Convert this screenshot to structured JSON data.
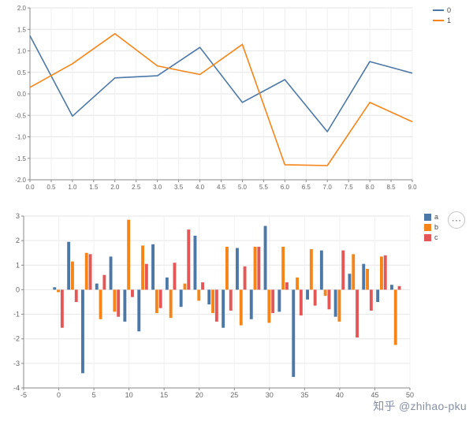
{
  "watermark": {
    "text": "知乎 @zhihao-pku"
  },
  "actions_button": {
    "icon": "⋯"
  },
  "colors": {
    "blue": "#4c78a8",
    "orange": "#f58518",
    "red": "#e45756",
    "grid": "#e6e6e6",
    "axis": "#8a8a8a",
    "tick_text": "#666666"
  },
  "chart_data": [
    {
      "type": "line",
      "title": "",
      "xlabel": "",
      "ylabel": "",
      "grid": true,
      "legend_position": "top-right",
      "xlim": [
        0,
        9
      ],
      "ylim": [
        -2,
        2
      ],
      "x": [
        0,
        1,
        2,
        3,
        4,
        5,
        6,
        7,
        8,
        9
      ],
      "series": [
        {
          "name": "0",
          "color": "#4c78a8",
          "values": [
            1.35,
            -0.52,
            0.37,
            0.42,
            1.08,
            -0.2,
            0.33,
            -0.88,
            0.75,
            0.48
          ]
        },
        {
          "name": "1",
          "color": "#f58518",
          "values": [
            0.15,
            0.7,
            1.4,
            0.65,
            0.45,
            1.15,
            -1.65,
            -1.67,
            -0.2,
            -0.65
          ]
        }
      ],
      "x_tick_values": [
        0,
        0.5,
        1,
        1.5,
        2,
        2.5,
        3,
        3.5,
        4,
        4.5,
        5,
        5.5,
        6,
        6.5,
        7,
        7.5,
        8,
        8.5,
        9
      ],
      "x_tick_labels": [
        "0.0",
        "0.5",
        "1.0",
        "1.5",
        "2.0",
        "2.5",
        "3.0",
        "3.5",
        "4.0",
        "4.5",
        "5.0",
        "5.5",
        "6.0",
        "6.5",
        "7.0",
        "7.5",
        "8.0",
        "8.5",
        "9.0"
      ],
      "y_tick_values": [
        -2,
        -1.5,
        -1,
        -0.5,
        0,
        0.5,
        1,
        1.5,
        2
      ],
      "y_tick_labels": [
        "-2.0",
        "-1.5",
        "-1.0",
        "-0.5",
        "0.0",
        "0.5",
        "1.0",
        "1.5",
        "2.0"
      ]
    },
    {
      "type": "bar",
      "title": "",
      "xlabel": "",
      "ylabel": "",
      "grid": true,
      "legend_position": "top-right",
      "xlim": [
        -5,
        50
      ],
      "ylim": [
        -4,
        3
      ],
      "categories": [
        0,
        2,
        4,
        6,
        8,
        10,
        12,
        14,
        16,
        18,
        20,
        22,
        24,
        26,
        28,
        30,
        32,
        34,
        36,
        38,
        40,
        42,
        44,
        46,
        48
      ],
      "series": [
        {
          "name": "a",
          "color": "#4c78a8",
          "values": [
            0.1,
            1.95,
            -3.4,
            0.25,
            1.35,
            -1.3,
            -1.7,
            1.85,
            0.5,
            -0.7,
            2.2,
            -0.6,
            -1.55,
            1.7,
            -1.2,
            2.6,
            -0.9,
            -3.55,
            -0.4,
            1.6,
            -1.1,
            0.65,
            1.05,
            -0.5,
            0.2
          ]
        },
        {
          "name": "b",
          "color": "#f58518",
          "values": [
            -0.1,
            1.15,
            1.5,
            -1.2,
            -0.9,
            2.85,
            1.8,
            -0.95,
            -1.15,
            0.25,
            -0.45,
            -0.95,
            1.75,
            -1.45,
            1.75,
            -1.35,
            1.75,
            0.5,
            1.65,
            -0.25,
            -1.3,
            1.45,
            0.85,
            1.35,
            -2.25
          ]
        },
        {
          "name": "c",
          "color": "#e45756",
          "values": [
            -1.55,
            -0.5,
            1.45,
            0.6,
            -1.1,
            -0.3,
            1.05,
            -0.75,
            1.1,
            2.45,
            0.3,
            -1.3,
            -0.85,
            0.95,
            1.75,
            -0.95,
            0.3,
            -1.05,
            -0.65,
            -0.8,
            1.6,
            -1.95,
            -0.85,
            1.4,
            0.15
          ]
        }
      ],
      "x_tick_values": [
        -5,
        0,
        5,
        10,
        15,
        20,
        25,
        30,
        35,
        40,
        45,
        50
      ],
      "x_tick_labels": [
        "-5",
        "0",
        "5",
        "10",
        "15",
        "20",
        "25",
        "30",
        "35",
        "40",
        "45",
        "50"
      ],
      "y_tick_values": [
        -4,
        -3,
        -2,
        -1,
        0,
        1,
        2,
        3
      ],
      "y_tick_labels": [
        "-4",
        "-3",
        "-2",
        "-1",
        "0",
        "1",
        "2",
        "3"
      ]
    }
  ]
}
